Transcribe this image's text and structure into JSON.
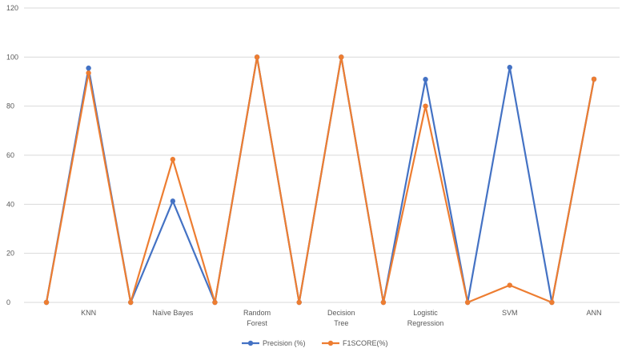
{
  "chart_data": {
    "type": "line",
    "title": "",
    "xlabel": "",
    "ylabel": "",
    "ylim": [
      0,
      120
    ],
    "yticks": [
      0,
      20,
      40,
      60,
      80,
      100,
      120
    ],
    "grid": true,
    "legend_position": "bottom",
    "x_points": 14,
    "category_labels": [
      {
        "index": 1,
        "lines": [
          "KNN"
        ]
      },
      {
        "index": 3,
        "lines": [
          "Naïve Bayes"
        ]
      },
      {
        "index": 5,
        "lines": [
          "Random",
          "Forest"
        ]
      },
      {
        "index": 7,
        "lines": [
          "Decision",
          "Tree"
        ]
      },
      {
        "index": 9,
        "lines": [
          "Logistic",
          "Regression"
        ]
      },
      {
        "index": 11,
        "lines": [
          "SVM"
        ]
      },
      {
        "index": 13,
        "lines": [
          "ANN"
        ]
      }
    ],
    "series": [
      {
        "name": "Precision (%)",
        "color": "#4472c4",
        "values": [
          0,
          95.5,
          0,
          41.3,
          0,
          100,
          0,
          100,
          0,
          90.9,
          0,
          95.8,
          0,
          91
        ]
      },
      {
        "name": "F1SCORE(%)",
        "color": "#ed7d31",
        "values": [
          0,
          93.5,
          0,
          58.3,
          0,
          100,
          0,
          100,
          0,
          80,
          0,
          7,
          0,
          91
        ]
      }
    ]
  }
}
